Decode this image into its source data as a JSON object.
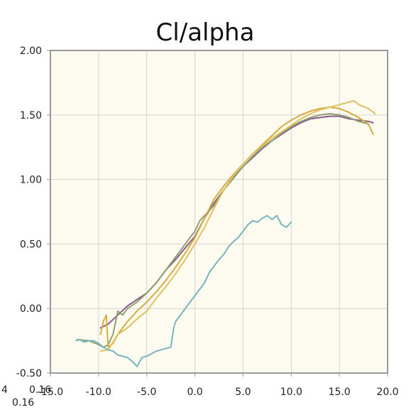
{
  "chart_data": {
    "type": "line",
    "title": "Cl/alpha",
    "xlabel": "",
    "ylabel": "",
    "xlim": [
      -15,
      20
    ],
    "ylim": [
      -0.5,
      2.0
    ],
    "grid": true,
    "legend": "none",
    "x_ticks": [
      "-15.0",
      "-10.0",
      "-5.0",
      "0.0",
      "5.0",
      "10.0",
      "15.0",
      "20.0"
    ],
    "y_ticks": [
      "-0.50",
      "0.00",
      "0.50",
      "1.00",
      "1.50",
      "2.00"
    ],
    "stray_labels": [
      "0.16",
      "4",
      "0.16"
    ],
    "colors": {
      "plot_bg": "#fdfbf0",
      "grid": "#d4d4d4",
      "axis": "#999999"
    },
    "series": [
      {
        "color": "#8c5c8c",
        "points": [
          [
            -9.8,
            -0.15
          ],
          [
            -9,
            -0.12
          ],
          [
            -8,
            -0.05
          ],
          [
            -7,
            0.02
          ],
          [
            -6,
            0.07
          ],
          [
            -5,
            0.12
          ],
          [
            -4,
            0.2
          ],
          [
            -3,
            0.3
          ],
          [
            -2,
            0.38
          ],
          [
            -1,
            0.47
          ],
          [
            0,
            0.56
          ],
          [
            1,
            0.7
          ],
          [
            2,
            0.82
          ],
          [
            3,
            0.92
          ],
          [
            4,
            1.02
          ],
          [
            5,
            1.1
          ],
          [
            6,
            1.17
          ],
          [
            7,
            1.24
          ],
          [
            8,
            1.3
          ],
          [
            9,
            1.35
          ],
          [
            10,
            1.4
          ],
          [
            11,
            1.44
          ],
          [
            12,
            1.47
          ],
          [
            13,
            1.48
          ],
          [
            14,
            1.49
          ],
          [
            15,
            1.49
          ],
          [
            16,
            1.47
          ],
          [
            17,
            1.46
          ],
          [
            18,
            1.45
          ],
          [
            18.5,
            1.44
          ]
        ]
      },
      {
        "color": "#8ca070",
        "points": [
          [
            -12.2,
            -0.24
          ],
          [
            -11,
            -0.25
          ],
          [
            -10,
            -0.28
          ],
          [
            -9.5,
            -0.3
          ],
          [
            -9,
            -0.28
          ],
          [
            -8.5,
            -0.2
          ],
          [
            -8,
            -0.02
          ],
          [
            -7.5,
            -0.05
          ],
          [
            -7,
            0.0
          ],
          [
            -6,
            0.05
          ],
          [
            -5,
            0.12
          ],
          [
            -4,
            0.2
          ],
          [
            -3,
            0.3
          ],
          [
            -2,
            0.4
          ],
          [
            -1,
            0.5
          ],
          [
            0,
            0.6
          ],
          [
            0.5,
            0.68
          ],
          [
            1,
            0.72
          ],
          [
            2,
            0.8
          ],
          [
            3,
            0.92
          ],
          [
            4,
            1.01
          ],
          [
            5,
            1.1
          ],
          [
            6,
            1.18
          ],
          [
            7,
            1.25
          ],
          [
            8,
            1.3
          ],
          [
            9,
            1.36
          ],
          [
            10,
            1.41
          ],
          [
            11,
            1.45
          ],
          [
            12,
            1.48
          ],
          [
            13,
            1.5
          ],
          [
            14,
            1.51
          ],
          [
            15,
            1.5
          ],
          [
            16,
            1.48
          ],
          [
            17,
            1.45
          ],
          [
            18,
            1.43
          ]
        ]
      },
      {
        "color": "#d4ac40",
        "points": [
          [
            -9.8,
            -0.2
          ],
          [
            -9.5,
            -0.1
          ],
          [
            -9.2,
            -0.05
          ],
          [
            -9,
            -0.3
          ],
          [
            -8.5,
            -0.27
          ],
          [
            -8,
            -0.2
          ],
          [
            -7,
            -0.1
          ],
          [
            -6,
            -0.02
          ],
          [
            -5,
            0.05
          ],
          [
            -4,
            0.13
          ],
          [
            -3,
            0.22
          ],
          [
            -2,
            0.32
          ],
          [
            -1,
            0.43
          ],
          [
            0,
            0.55
          ],
          [
            1,
            0.7
          ],
          [
            2,
            0.85
          ],
          [
            3,
            0.95
          ],
          [
            4,
            1.04
          ],
          [
            5,
            1.12
          ],
          [
            6,
            1.2
          ],
          [
            7,
            1.27
          ],
          [
            8,
            1.34
          ],
          [
            9,
            1.41
          ],
          [
            10,
            1.46
          ],
          [
            11,
            1.5
          ],
          [
            12,
            1.53
          ],
          [
            13,
            1.55
          ],
          [
            14,
            1.56
          ],
          [
            15,
            1.55
          ],
          [
            16,
            1.52
          ],
          [
            17,
            1.48
          ],
          [
            18,
            1.43
          ],
          [
            18.5,
            1.35
          ]
        ]
      },
      {
        "color": "#e0c060",
        "points": [
          [
            -9.8,
            -0.33
          ],
          [
            -9,
            -0.32
          ],
          [
            -8,
            -0.2
          ],
          [
            -7,
            -0.15
          ],
          [
            -6,
            -0.08
          ],
          [
            -5,
            -0.02
          ],
          [
            -4,
            0.08
          ],
          [
            -3,
            0.17
          ],
          [
            -2,
            0.27
          ],
          [
            -1,
            0.38
          ],
          [
            0,
            0.5
          ],
          [
            1,
            0.63
          ],
          [
            2,
            0.78
          ],
          [
            3,
            0.92
          ],
          [
            4,
            1.03
          ],
          [
            5,
            1.12
          ],
          [
            6,
            1.2
          ],
          [
            7,
            1.26
          ],
          [
            8,
            1.32
          ],
          [
            9,
            1.37
          ],
          [
            10,
            1.42
          ],
          [
            11,
            1.47
          ],
          [
            12,
            1.51
          ],
          [
            13,
            1.54
          ],
          [
            14,
            1.56
          ],
          [
            15,
            1.58
          ],
          [
            16,
            1.6
          ],
          [
            16.5,
            1.61
          ],
          [
            17,
            1.58
          ],
          [
            18,
            1.55
          ],
          [
            18.7,
            1.51
          ]
        ]
      },
      {
        "color": "#78b4bc",
        "points": [
          [
            -12.3,
            -0.25
          ],
          [
            -12,
            -0.24
          ],
          [
            -11.5,
            -0.26
          ],
          [
            -11,
            -0.25
          ],
          [
            -10.5,
            -0.25
          ],
          [
            -10,
            -0.27
          ],
          [
            -9.5,
            -0.3
          ],
          [
            -9,
            -0.32
          ],
          [
            -8.5,
            -0.33
          ],
          [
            -8,
            -0.36
          ],
          [
            -7.5,
            -0.37
          ],
          [
            -7,
            -0.38
          ],
          [
            -6.5,
            -0.41
          ],
          [
            -6,
            -0.45
          ],
          [
            -5.5,
            -0.38
          ],
          [
            -5,
            -0.37
          ],
          [
            -4.5,
            -0.35
          ],
          [
            -4,
            -0.33
          ],
          [
            -3.5,
            -0.32
          ],
          [
            -2.5,
            -0.3
          ],
          [
            -2.2,
            -0.15
          ],
          [
            -2,
            -0.1
          ],
          [
            -1,
            0.0
          ],
          [
            0,
            0.1
          ],
          [
            0.5,
            0.15
          ],
          [
            1,
            0.2
          ],
          [
            1.5,
            0.28
          ],
          [
            2,
            0.33
          ],
          [
            2.5,
            0.38
          ],
          [
            3,
            0.42
          ],
          [
            3.5,
            0.48
          ],
          [
            4,
            0.52
          ],
          [
            4.5,
            0.55
          ],
          [
            5,
            0.6
          ],
          [
            5.5,
            0.65
          ],
          [
            6,
            0.68
          ],
          [
            6.5,
            0.67
          ],
          [
            7,
            0.7
          ],
          [
            7.5,
            0.72
          ],
          [
            8,
            0.69
          ],
          [
            8.5,
            0.72
          ],
          [
            9,
            0.65
          ],
          [
            9.5,
            0.63
          ],
          [
            10,
            0.67
          ]
        ]
      }
    ]
  }
}
